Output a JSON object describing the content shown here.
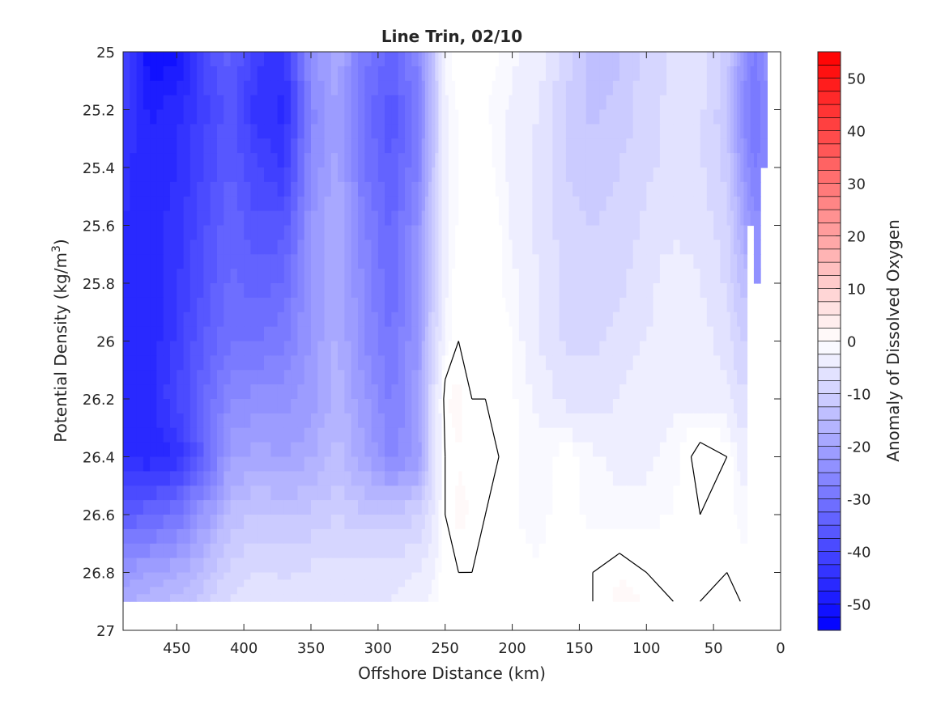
{
  "chart_data": {
    "type": "heatmap",
    "subtype": "filled-contour",
    "title": "Line Trin, 02/10",
    "xlabel": "Offshore Distance (km)",
    "ylabel": "Potential Density (kg/m",
    "ylabel_superscript": "3",
    "ylabel_suffix": ")",
    "colorbar_label": "Anomaly of Dissolved Oxygen",
    "x_reversed": true,
    "y_reversed": true,
    "xlim": [
      0,
      490
    ],
    "ylim": [
      25,
      27
    ],
    "clim": [
      -55,
      55
    ],
    "contour_step": 2.5,
    "x_ticks": [
      450,
      400,
      350,
      300,
      250,
      200,
      150,
      100,
      50,
      0
    ],
    "y_ticks": [
      25,
      25.2,
      25.4,
      25.6,
      25.8,
      26,
      26.2,
      26.4,
      26.6,
      26.8,
      27
    ],
    "y_tick_labels": [
      "25",
      "25.2",
      "25.4",
      "25.6",
      "25.8",
      "26",
      "26.2",
      "26.4",
      "26.6",
      "26.8",
      "27"
    ],
    "colorbar_ticks": [
      50,
      40,
      30,
      20,
      10,
      0,
      -10,
      -20,
      -30,
      -40,
      -50
    ],
    "colors": {
      "negative_max": "#0000ff",
      "zero": "#ffffff",
      "positive_max": "#ff0000",
      "contour_line": "#000000",
      "axis": "#262626"
    },
    "grid": false,
    "data_extent": {
      "x_max": 490,
      "y_bottom": 26.9
    },
    "x": [
      490,
      470,
      450,
      430,
      410,
      390,
      370,
      350,
      330,
      310,
      290,
      270,
      260,
      250,
      240,
      230,
      220,
      210,
      200,
      180,
      160,
      140,
      120,
      100,
      80,
      60,
      40,
      30,
      20,
      10
    ],
    "y": [
      25.0,
      25.2,
      25.4,
      25.6,
      25.8,
      26.0,
      26.2,
      26.4,
      26.6,
      26.8,
      26.9
    ],
    "values": [
      [
        -38,
        -53,
        -51,
        -39,
        -34,
        -42,
        -44,
        -24,
        -18,
        -29,
        -33,
        -26,
        -14,
        -2,
        0,
        0,
        0,
        -1,
        -2,
        -4,
        -9,
        -14,
        -13,
        -9,
        -7,
        -6,
        -11,
        -20,
        -28,
        -24
      ],
      [
        -42,
        -48,
        -46,
        -41,
        -36,
        -44,
        -46,
        -26,
        -20,
        -31,
        -37,
        -28,
        -15,
        -3,
        -1,
        0,
        -1,
        -2,
        -3,
        -5,
        -10,
        -13,
        -12,
        -8,
        -7,
        -7,
        -12,
        -24,
        -30,
        -25
      ],
      [
        -44,
        -47,
        -45,
        -40,
        -35,
        -40,
        -43,
        -25,
        -19,
        -30,
        -35,
        -27,
        -14,
        -3,
        -1,
        0,
        0,
        -2,
        -3,
        -6,
        -10,
        -12,
        -10,
        -8,
        -7,
        -7,
        -11,
        -20,
        -28,
        -26
      ],
      [
        -45,
        -46,
        -44,
        -38,
        -33,
        -37,
        -36,
        -23,
        -17,
        -27,
        -33,
        -24,
        -12,
        -3,
        -1,
        -1,
        0,
        -1,
        -3,
        -6,
        -9,
        -10,
        -9,
        -7,
        -6,
        -6,
        -9,
        -17,
        -24,
        null
      ],
      [
        -46,
        -47,
        -43,
        -37,
        -32,
        -34,
        -32,
        -22,
        -17,
        -26,
        -32,
        -23,
        -12,
        -3,
        0,
        0,
        0,
        -1,
        -2,
        -5,
        -8,
        -9,
        -8,
        -6,
        -3,
        -5,
        -8,
        -13,
        null,
        null
      ],
      [
        -46,
        -47,
        -42,
        -35,
        -30,
        -30,
        -28,
        -22,
        -17,
        -25,
        -30,
        -22,
        -10,
        -2,
        0,
        0,
        0,
        0,
        -1,
        -5,
        -8,
        -8,
        -7,
        -5,
        -4,
        -4,
        -6,
        -10,
        null,
        null
      ],
      [
        -45,
        -46,
        -40,
        -33,
        -25,
        -24,
        -24,
        -21,
        -16,
        -22,
        -28,
        -21,
        -8,
        1,
        2,
        0,
        0,
        0,
        -1,
        -3,
        -6,
        -6,
        -5,
        -3,
        -3,
        -3,
        -4,
        -7,
        null,
        null
      ],
      [
        -45,
        -47,
        -45,
        -34,
        -21,
        -19,
        -20,
        -18,
        -14,
        -20,
        -26,
        -22,
        -8,
        0,
        1,
        1,
        1,
        0,
        -1,
        -2,
        0,
        -2,
        -3,
        -3,
        -2,
        1,
        0,
        -3,
        null,
        null
      ],
      [
        -35,
        -33,
        -30,
        -22,
        -14,
        -12,
        -13,
        -12,
        -10,
        -12,
        -12,
        -10,
        -6,
        0,
        2,
        1,
        0,
        0,
        -1,
        -2,
        0,
        -2,
        -2,
        -2,
        -1,
        0,
        0,
        -2,
        null,
        null
      ],
      [
        -22,
        -20,
        -18,
        -14,
        -9,
        -7,
        -8,
        -7,
        -6,
        -6,
        -6,
        -5,
        -3,
        0,
        0,
        0,
        0,
        0,
        0,
        -1,
        0,
        0,
        1,
        0,
        0,
        0,
        0,
        0,
        null,
        null
      ],
      [
        -18,
        -16,
        -14,
        -11,
        -7,
        -6,
        -7,
        -6,
        -5,
        -5,
        -5,
        -4,
        -2,
        0,
        0,
        0,
        0,
        0,
        0,
        0,
        0,
        0,
        2,
        1,
        0,
        0,
        1,
        0,
        null,
        null
      ]
    ]
  }
}
